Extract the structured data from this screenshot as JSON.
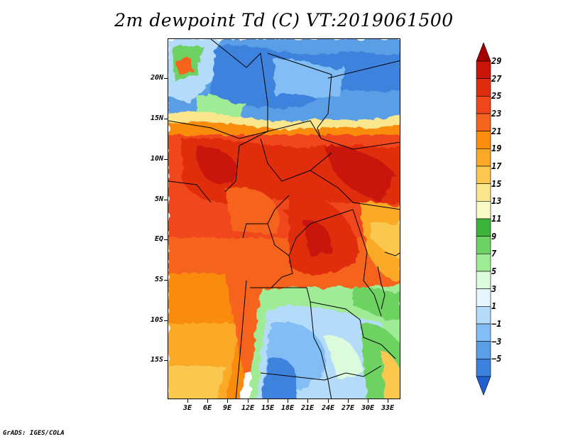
{
  "title": "2m dewpoint Td (C) VT:2019061500",
  "footer": "GrADS: IGES/COLA",
  "map": {
    "variable": "2m dewpoint",
    "units": "C",
    "valid_time": "2019061500",
    "lon_range": [
      0,
      35
    ],
    "lat_range": [
      -20,
      25
    ],
    "y_ticks": [
      "20N",
      "15N",
      "10N",
      "5N",
      "EQ",
      "5S",
      "10S",
      "15S"
    ],
    "x_ticks": [
      "3E",
      "6E",
      "9E",
      "12E",
      "15E",
      "18E",
      "21E",
      "24E",
      "27E",
      "30E",
      "33E"
    ]
  },
  "colorbar": {
    "labels": [
      "29",
      "27",
      "25",
      "23",
      "21",
      "19",
      "17",
      "15",
      "13",
      "11",
      "9",
      "7",
      "5",
      "3",
      "1",
      "−1",
      "−3",
      "−5"
    ],
    "colors": [
      "#a50000",
      "#c8140a",
      "#e02d0f",
      "#f0461e",
      "#f5641e",
      "#fa8c0f",
      "#faaa28",
      "#fac850",
      "#fae68c",
      "#fafac8",
      "#3cb43c",
      "#6ed264",
      "#a0eb96",
      "#dcfadc",
      "#e6f5ff",
      "#b4dcfa",
      "#82bef5",
      "#5a9fe6",
      "#3c82dc",
      "#1e5fd2"
    ]
  }
}
